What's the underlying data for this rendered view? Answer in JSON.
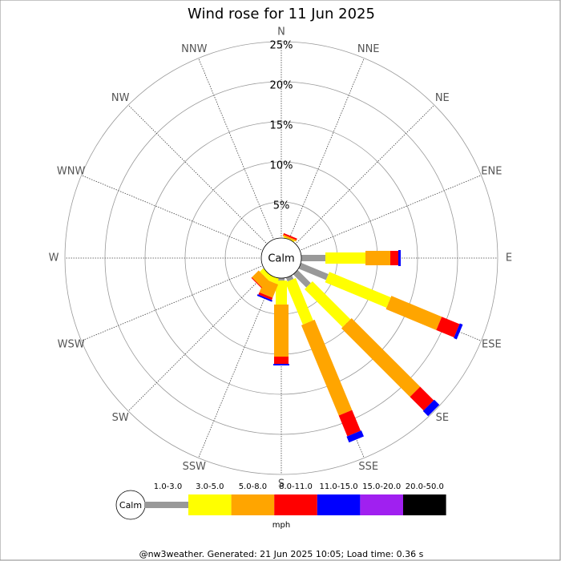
{
  "chart_data": {
    "type": "wind-rose",
    "title": "Wind rose for 11 Jun 2025",
    "calm_label": "Calm",
    "units_label": "mph",
    "footer": "@nw3weather. Generated: 21 Jun 2025 10:05; Load time: 0.36 s",
    "categories": [
      "N",
      "NNE",
      "NE",
      "ENE",
      "E",
      "ESE",
      "SE",
      "SSE",
      "S",
      "SSW",
      "SW",
      "WSW",
      "W",
      "WNW",
      "NW",
      "NNW"
    ],
    "rlim": [
      0,
      25
    ],
    "rticks": [
      {
        "value": 5,
        "label": "5%"
      },
      {
        "value": 10,
        "label": "10%"
      },
      {
        "value": 15,
        "label": "15%"
      },
      {
        "value": 20,
        "label": "20%"
      },
      {
        "value": 25,
        "label": "25%"
      }
    ],
    "series": [
      {
        "name": "1.0-3.0",
        "color": "#999999",
        "values": [
          0,
          0.2,
          0,
          0,
          3.5,
          4.2,
          2.8,
          1.0,
          0.8,
          0.5,
          0.5,
          0,
          0,
          0,
          0,
          0
        ]
      },
      {
        "name": "3.0-5.0",
        "color": "#ffff00",
        "values": [
          0,
          0.4,
          0,
          0,
          5.0,
          8.3,
          6.7,
          5.7,
          3.0,
          0.7,
          0.6,
          0,
          0,
          0,
          0,
          0
        ]
      },
      {
        "name": "5.0-8.0",
        "color": "#ffa500",
        "values": [
          0,
          0.2,
          0,
          0,
          3.1,
          6.8,
          12.1,
          12.2,
          6.5,
          1.8,
          1.2,
          0,
          0,
          0,
          0,
          0
        ]
      },
      {
        "name": "8.0-11.0",
        "color": "#ff0000",
        "values": [
          0,
          0.2,
          0,
          0,
          1.0,
          2.4,
          2.4,
          2.8,
          0.9,
          0.3,
          0.1,
          0,
          0,
          0,
          0,
          0
        ]
      },
      {
        "name": "11.0-15.0",
        "color": "#0000ff",
        "values": [
          0,
          0,
          0,
          0,
          0.3,
          0.4,
          0.9,
          0.8,
          0.2,
          0.2,
          0,
          0,
          0,
          0,
          0,
          0
        ]
      },
      {
        "name": "15.0-20.0",
        "color": "#a020f0",
        "values": [
          0,
          0,
          0,
          0,
          0,
          0,
          0,
          0,
          0,
          0,
          0,
          0,
          0,
          0,
          0,
          0
        ]
      },
      {
        "name": "20.0-50.0",
        "color": "#000000",
        "values": [
          0,
          0,
          0,
          0,
          0,
          0,
          0,
          0,
          0,
          0,
          0,
          0,
          0,
          0,
          0,
          0
        ]
      }
    ]
  }
}
